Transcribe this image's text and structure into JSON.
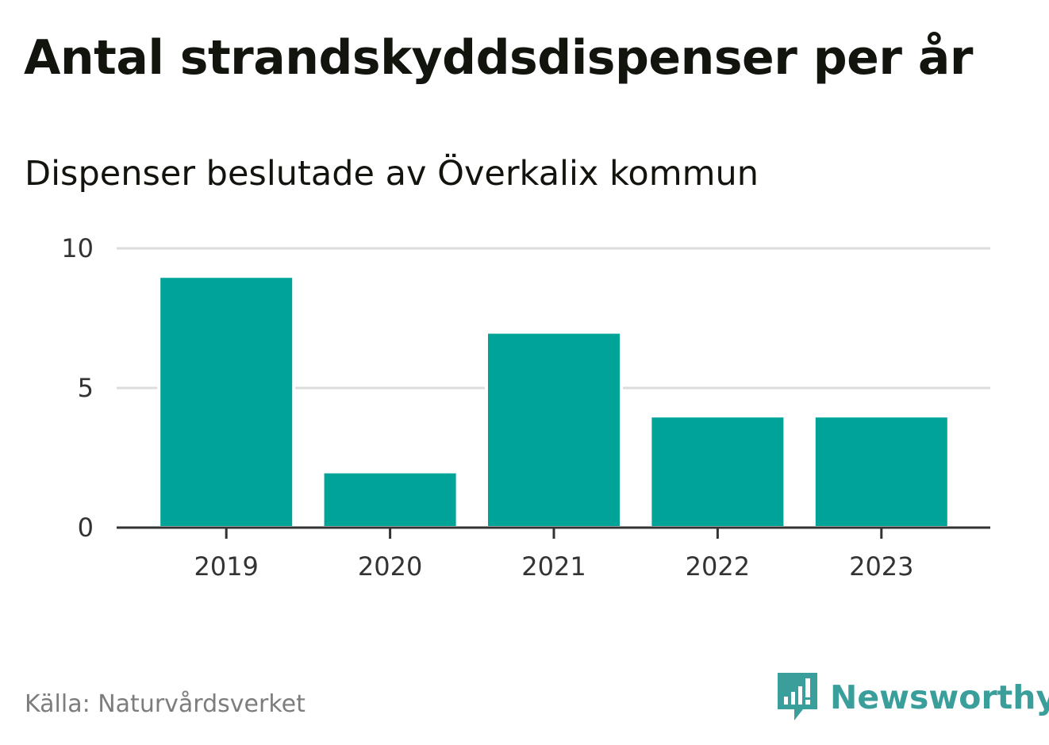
{
  "colors": {
    "bar": "#00a398",
    "grid": "#dcdcdc",
    "axis": "#333333",
    "title": "#12140e",
    "source": "#7d7d7d",
    "brand": "#3a9f9a"
  },
  "chart_data": {
    "type": "bar",
    "title": "Antal strandskyddsdispenser per år",
    "subtitle": "Dispenser beslutade av Överkalix kommun",
    "categories": [
      "2019",
      "2020",
      "2021",
      "2022",
      "2023"
    ],
    "values": [
      9,
      2,
      7,
      4,
      4
    ],
    "ylim": [
      0,
      10
    ],
    "yticks": [
      0,
      5,
      10
    ],
    "xlabel": "",
    "ylabel": "",
    "grid": true
  },
  "footer": {
    "source": "Källa: Naturvårdsverket",
    "brand": "Newsworthy",
    "brand_icon": "newsworthy-logo-icon"
  }
}
